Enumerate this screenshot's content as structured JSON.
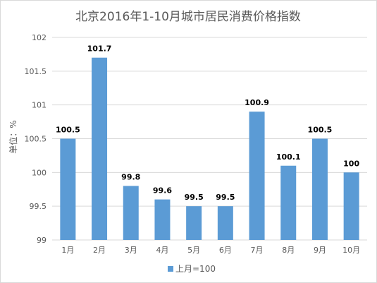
{
  "chart_data": {
    "type": "bar",
    "title": "北京2016年1-10月城市居民消费价格指数",
    "xlabel": "",
    "ylabel": "单位：%",
    "categories": [
      "1月",
      "2月",
      "3月",
      "4月",
      "5月",
      "6月",
      "7月",
      "8月",
      "9月",
      "10月"
    ],
    "series": [
      {
        "name": "上月=100",
        "values": [
          100.5,
          101.7,
          99.8,
          99.6,
          99.5,
          99.5,
          100.9,
          100.1,
          100.5,
          100
        ],
        "data_labels": [
          "100.5",
          "101.7",
          "99.8",
          "99.6",
          "99.5",
          "99.5",
          "100.9",
          "100.1",
          "100.5",
          "100"
        ]
      }
    ],
    "ylim": [
      99,
      102
    ],
    "y_ticks": [
      "99",
      "99.5",
      "100",
      "100.5",
      "101",
      "101.5",
      "102"
    ],
    "grid": true,
    "legend": "bottom",
    "colors": {
      "bar": "#5b9bd5",
      "grid": "#d9d9d9",
      "text": "#595959",
      "label": "#000000"
    }
  }
}
